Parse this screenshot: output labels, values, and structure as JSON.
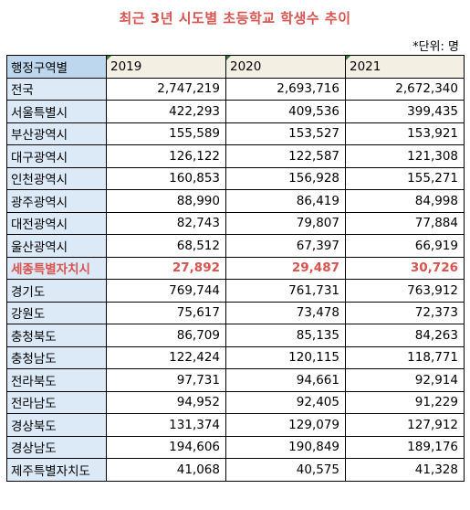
{
  "title": "최근 3년 시도별 초등학교 학생수 추이",
  "unit": "*단위: 명",
  "table": {
    "header": [
      "행정구역별",
      "2019",
      "2020",
      "2021"
    ],
    "rows": [
      {
        "region": "전국",
        "v2019": "2,747,219",
        "v2020": "2,693,716",
        "v2021": "2,672,340"
      },
      {
        "region": "서울특별시",
        "v2019": "422,293",
        "v2020": "409,536",
        "v2021": "399,435"
      },
      {
        "region": "부산광역시",
        "v2019": "155,589",
        "v2020": "153,527",
        "v2021": "153,921"
      },
      {
        "region": "대구광역시",
        "v2019": "126,122",
        "v2020": "122,587",
        "v2021": "121,308"
      },
      {
        "region": "인천광역시",
        "v2019": "160,853",
        "v2020": "156,928",
        "v2021": "155,271"
      },
      {
        "region": "광주광역시",
        "v2019": "88,990",
        "v2020": "86,419",
        "v2021": "84,998"
      },
      {
        "region": "대전광역시",
        "v2019": "82,743",
        "v2020": "79,807",
        "v2021": "77,884"
      },
      {
        "region": "울산광역시",
        "v2019": "68,512",
        "v2020": "67,397",
        "v2021": "66,919"
      },
      {
        "region": "세종특별자치시",
        "v2019": "27,892",
        "v2020": "29,487",
        "v2021": "30,726"
      },
      {
        "region": "경기도",
        "v2019": "769,744",
        "v2020": "761,731",
        "v2021": "763,912"
      },
      {
        "region": "강원도",
        "v2019": "75,617",
        "v2020": "73,478",
        "v2021": "72,373"
      },
      {
        "region": "충청북도",
        "v2019": "86,709",
        "v2020": "85,135",
        "v2021": "84,263"
      },
      {
        "region": "충청남도",
        "v2019": "122,424",
        "v2020": "120,115",
        "v2021": "118,771"
      },
      {
        "region": "전라북도",
        "v2019": "97,731",
        "v2020": "94,661",
        "v2021": "92,914"
      },
      {
        "region": "전라남도",
        "v2019": "94,952",
        "v2020": "92,405",
        "v2021": "91,229"
      },
      {
        "region": "경상북도",
        "v2019": "131,374",
        "v2020": "129,079",
        "v2021": "127,912"
      },
      {
        "region": "경상남도",
        "v2019": "194,606",
        "v2020": "190,849",
        "v2021": "189,176"
      },
      {
        "region": "제주특별자치도",
        "v2019": "41,068",
        "v2020": "40,575",
        "v2021": "41,328"
      }
    ]
  },
  "colors": {
    "title": "#d9534f",
    "highlight_row": "#d9534f",
    "header_region_bg": "#bdd7ee",
    "region_cell_bg": "#dce9f7",
    "year_header_bg": "#f3f0e3"
  }
}
